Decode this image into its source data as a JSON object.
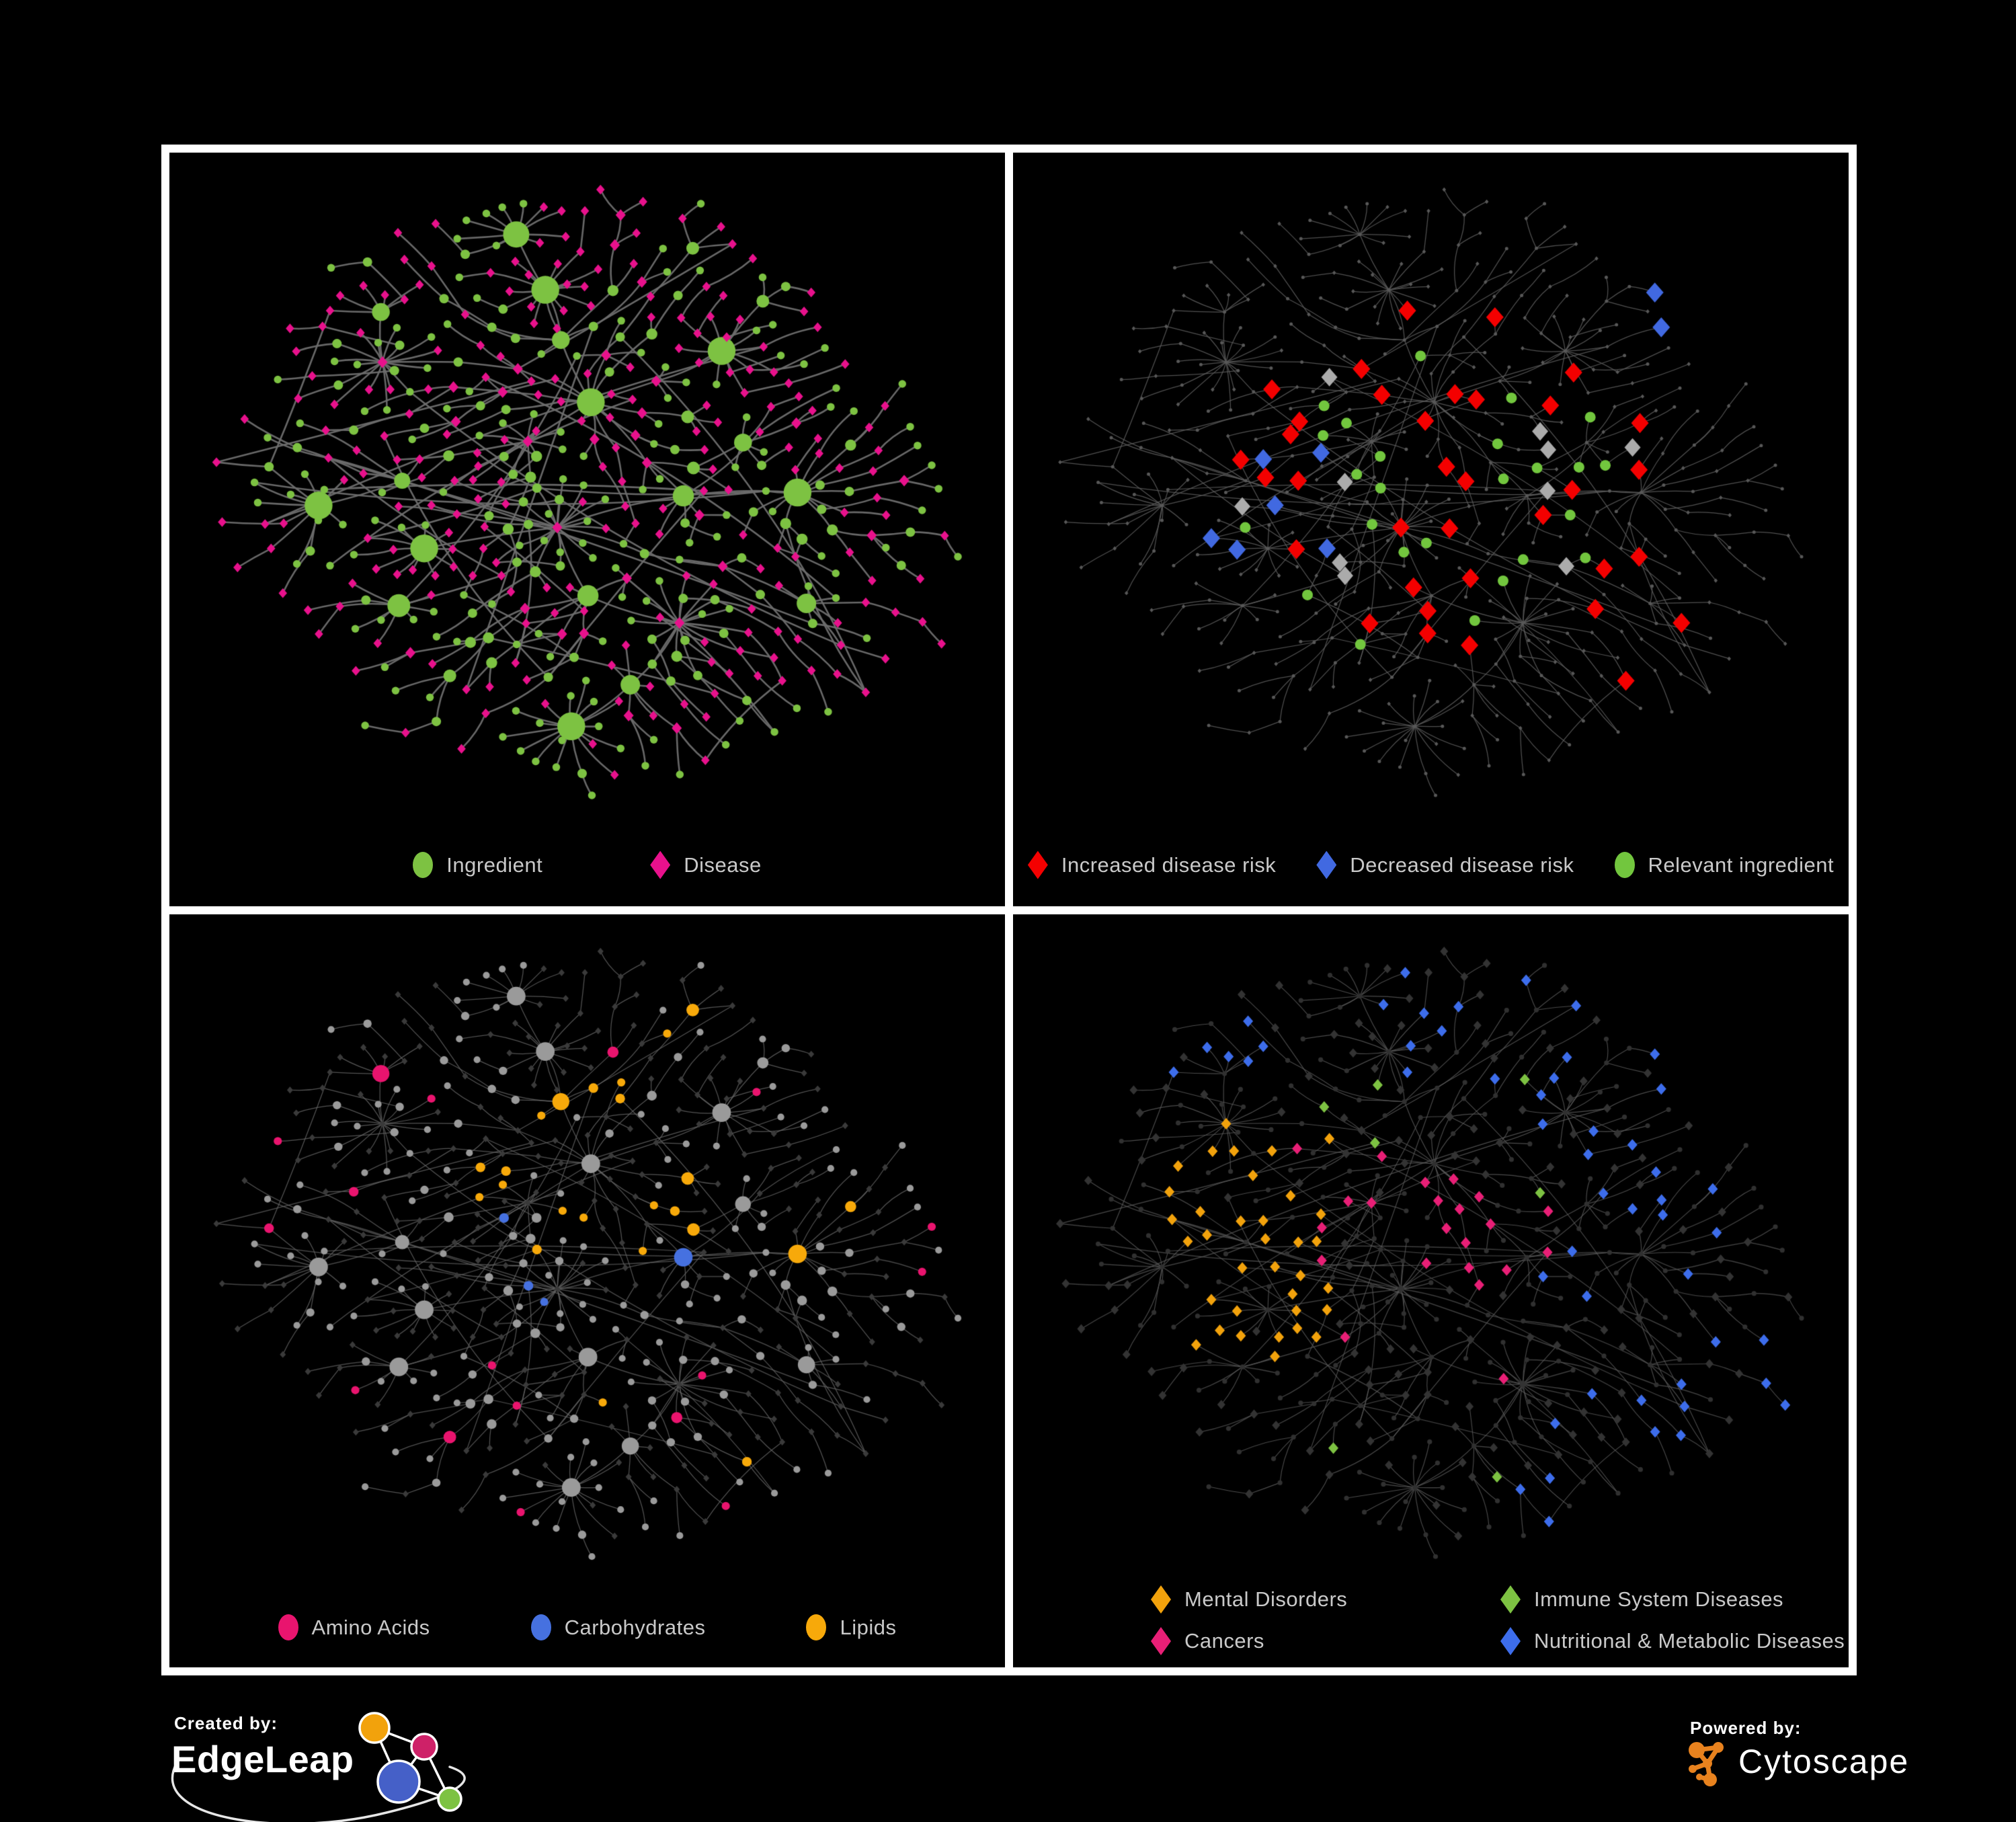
{
  "colors": {
    "background": "#000000",
    "frame_border": "#FFFFFF",
    "legend_text": "#C9C9C9"
  },
  "network": {
    "seed": 11,
    "node_count": 500,
    "extra_edges": 26,
    "fan_probability": 0.055,
    "layout": "organic force-directed, shared across all four panels"
  },
  "panels": [
    {
      "name": "ingredient-disease-network",
      "legend_gap": 160,
      "legend": [
        {
          "shape": "circle",
          "color": "#7DC242",
          "label": "Ingredient"
        },
        {
          "shape": "diamond",
          "color": "#E8118C",
          "label": "Disease"
        }
      ],
      "style": {
        "edge": "#6E6E6E",
        "edge_width": 2.6,
        "edge_alpha": 0.95,
        "circle": "#7DC242",
        "diamond": "#E8118C"
      }
    },
    {
      "name": "disease-risk-network",
      "legend_gap": 60,
      "legend": [
        {
          "shape": "diamond",
          "color": "#F40000",
          "label": "Increased disease risk"
        },
        {
          "shape": "diamond",
          "color": "#4169E1",
          "label": "Decreased disease risk"
        },
        {
          "shape": "circle",
          "color": "#72C63E",
          "label": "Relevant ingredient"
        }
      ],
      "style": {
        "edge": "#5E5E5E",
        "edge_width": 1.25,
        "edge_alpha": 0.85,
        "base": "#585858",
        "increased": "#F40000",
        "decreased": "#4169E1",
        "neutral": "#ABABAB",
        "relevant": "#72C63E"
      }
    },
    {
      "name": "nutrient-class-network",
      "legend_gap": 150,
      "legend": [
        {
          "shape": "circle",
          "color": "#E9146E",
          "label": "Amino Acids"
        },
        {
          "shape": "circle",
          "color": "#4671E0",
          "label": "Carbohydrates"
        },
        {
          "shape": "circle",
          "color": "#F7A90A",
          "label": "Lipids"
        }
      ],
      "style": {
        "edge": "#666666",
        "edge_width": 1.25,
        "edge_alpha": 0.8,
        "circle": "#9A9A9A",
        "diamond": "#3A3A3A",
        "amino": "#E9146E",
        "carb": "#4671E0",
        "lipid": "#F7A90A"
      }
    },
    {
      "name": "disease-category-network",
      "legend_columns": 2,
      "legend": [
        {
          "shape": "diamond",
          "color": "#F2A20C",
          "label": "Mental Disorders"
        },
        {
          "shape": "diamond",
          "color": "#7DC242",
          "label": "Immune System Diseases"
        },
        {
          "shape": "diamond",
          "color": "#E81F76",
          "label": "Cancers"
        },
        {
          "shape": "diamond",
          "color": "#3D6DEB",
          "label": "Nutritional & Metabolic Diseases"
        }
      ],
      "style": {
        "edge": "#5C5C5C",
        "edge_width": 1.15,
        "edge_alpha": 0.8,
        "base": "#333333",
        "circle": "#303030",
        "mental": "#F2A20C",
        "immune": "#7DC242",
        "cancer": "#E81F76",
        "nutritional": "#3D6DEB"
      }
    }
  ],
  "footer": {
    "created_by": "Created by:",
    "created_brand": "EdgeLeap",
    "powered_by": "Powered by:",
    "powered_brand": "Cytoscape",
    "edgeleap_logo_colors": {
      "orange": "#F2A20C",
      "pink": "#CE2168",
      "blue": "#4560C8",
      "green": "#7DC242"
    },
    "cytoscape_orange": "#E8821E"
  }
}
